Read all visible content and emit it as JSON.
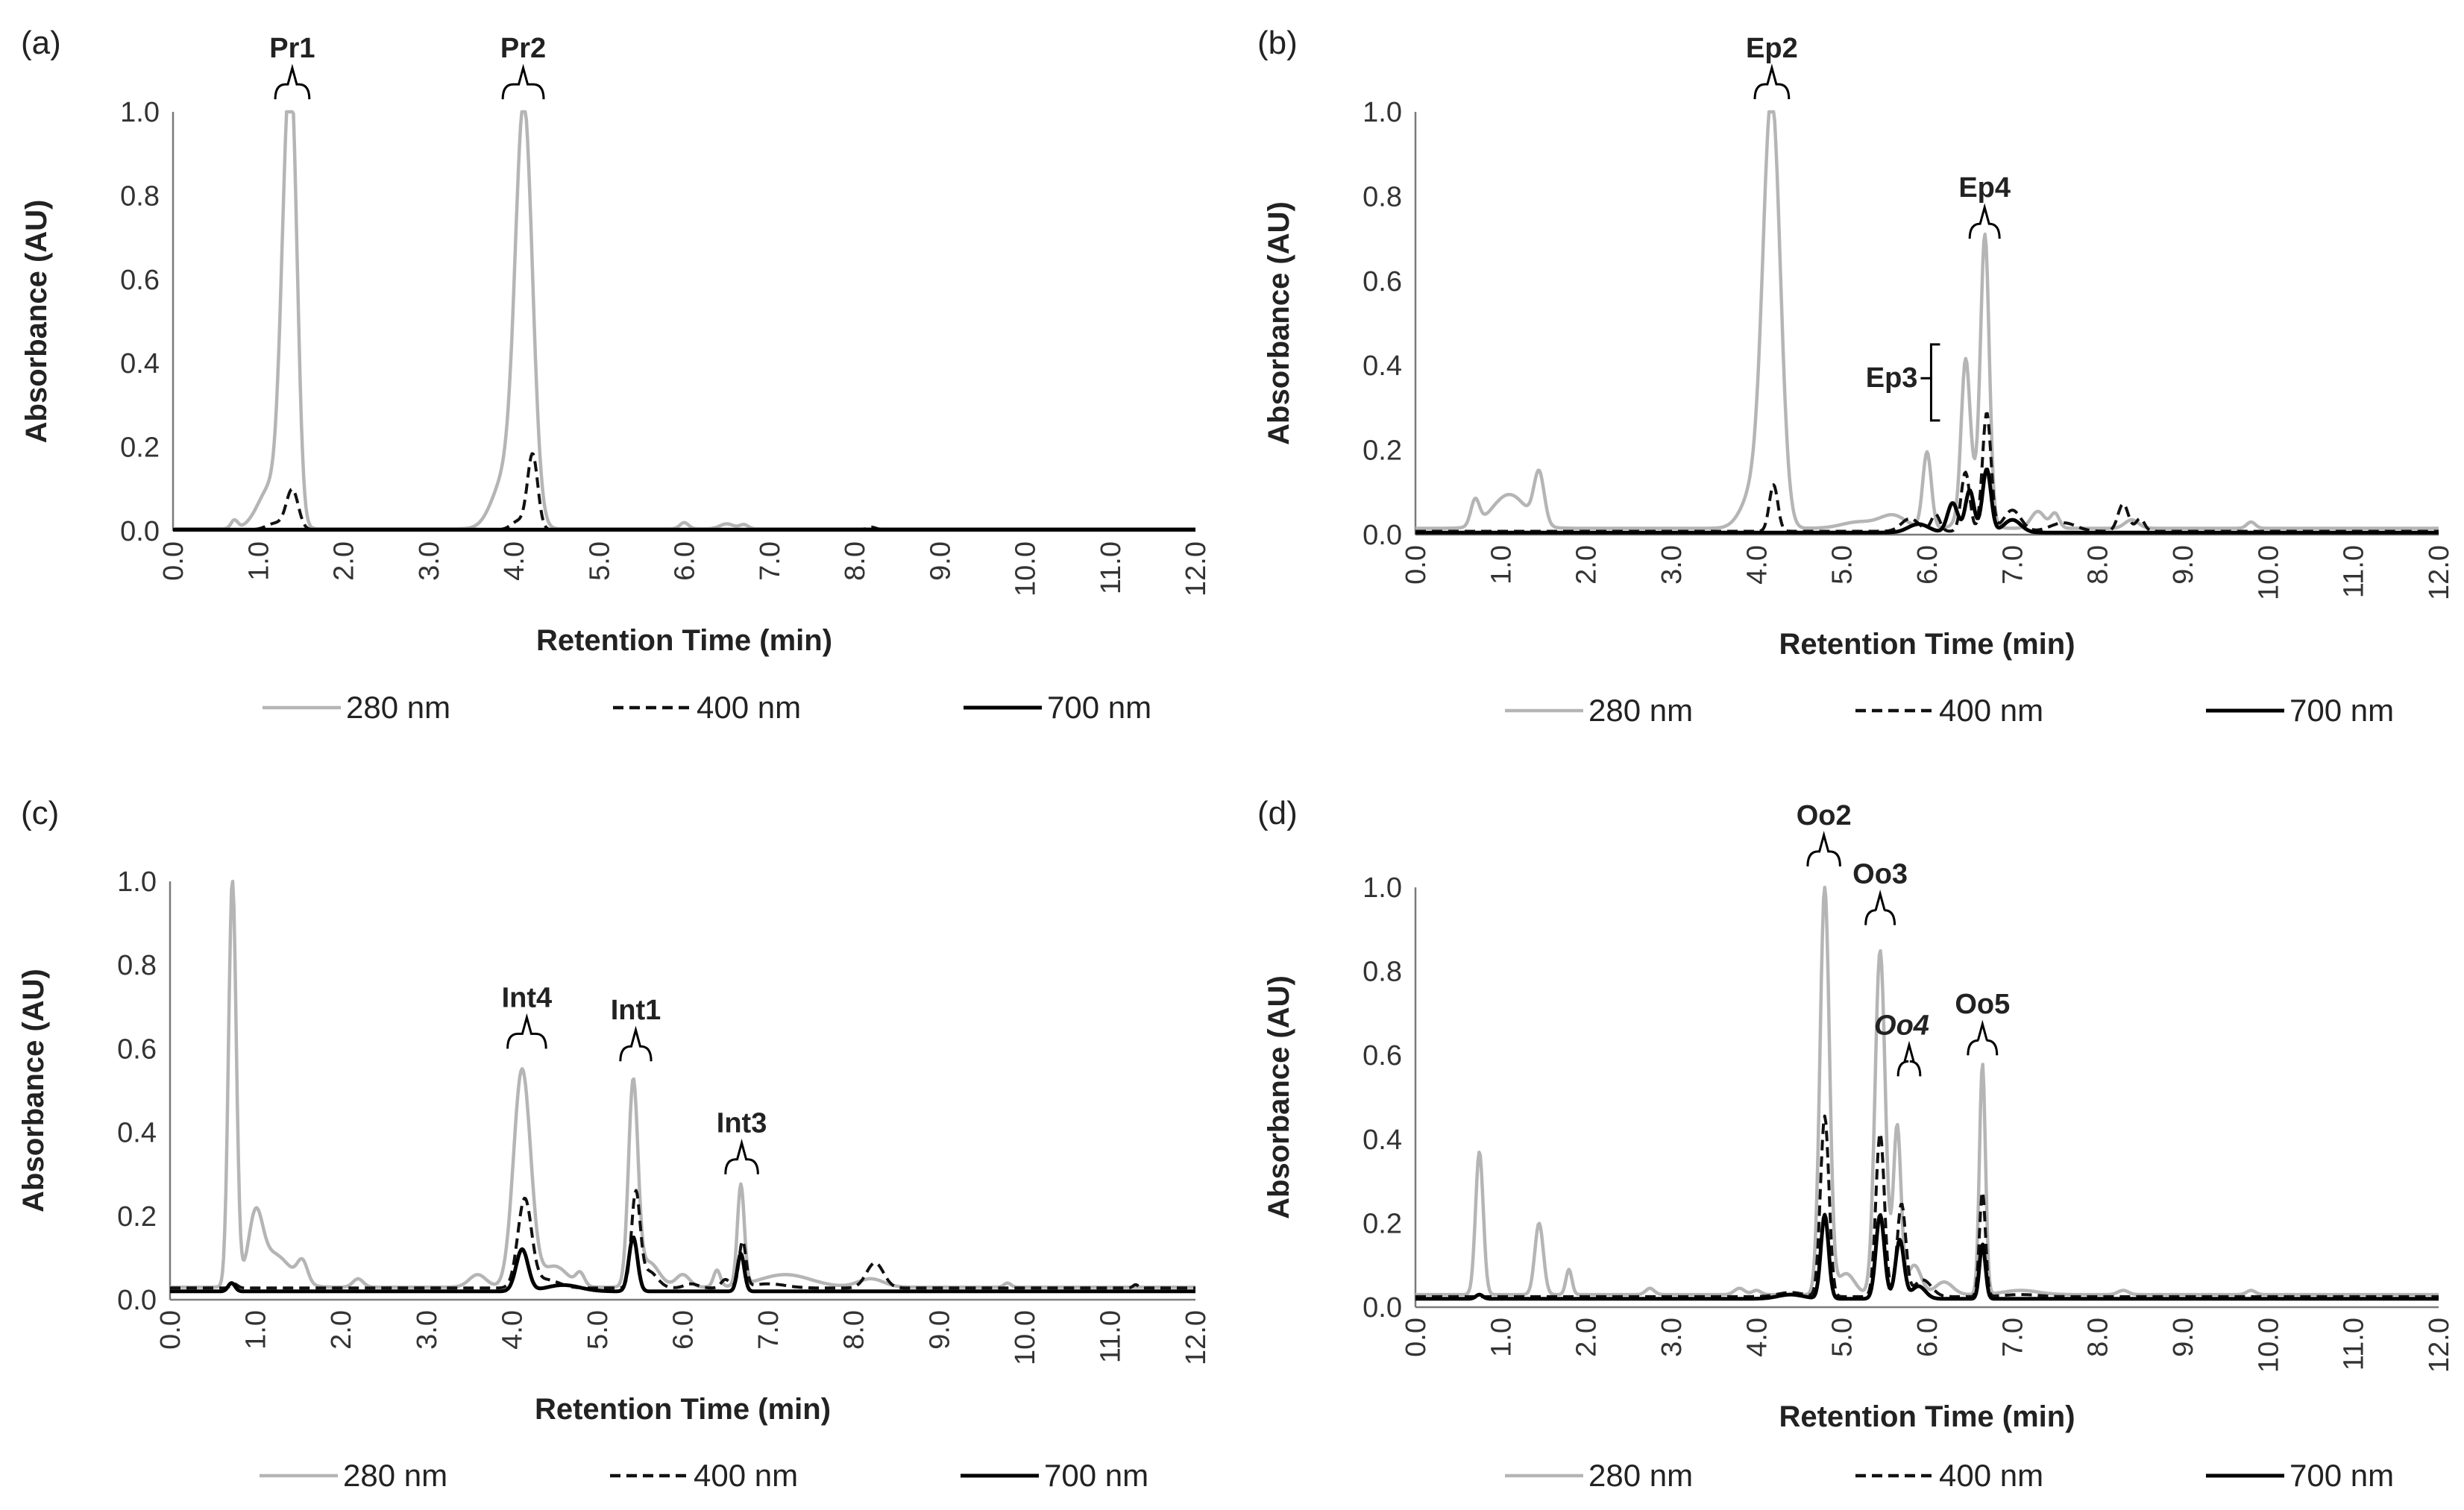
{
  "figure": {
    "colors": {
      "nm280": "#b5b5b5",
      "nm400": "#111111",
      "nm700": "#000000"
    },
    "legend": [
      {
        "key": "nm280",
        "label": "280 nm",
        "dash": ""
      },
      {
        "key": "nm400",
        "label": "400 nm",
        "dash": "14,8"
      },
      {
        "key": "nm700",
        "label": "700 nm",
        "dash": ""
      }
    ]
  },
  "chart_data": [
    {
      "id": "a",
      "panel_label": "(a)",
      "type": "line",
      "xlabel": "Retention Time (min)",
      "ylabel": "Absorbance (AU)",
      "xlim": [
        0,
        12
      ],
      "ylim": [
        0,
        1.0
      ],
      "xticks": [
        "0.0",
        "1.0",
        "2.0",
        "3.0",
        "4.0",
        "5.0",
        "6.0",
        "7.0",
        "8.0",
        "9.0",
        "10.0",
        "11.0",
        "12.0"
      ],
      "yticks": [
        "0.0",
        "0.2",
        "0.4",
        "0.6",
        "0.8",
        "1.0"
      ],
      "baseline": {
        "nm280": 0.005,
        "nm400": 0.003,
        "nm700": 0.003
      },
      "peaks": {
        "nm280": [
          [
            0.72,
            0.02,
            0.04
          ],
          [
            1.35,
            0.85,
            0.08
          ],
          [
            1.42,
            0.35,
            0.06
          ],
          [
            1.15,
            0.1,
            0.15
          ],
          [
            4.12,
            0.98,
            0.1
          ],
          [
            3.9,
            0.12,
            0.15
          ],
          [
            6.0,
            0.015,
            0.05
          ],
          [
            6.5,
            0.012,
            0.08
          ],
          [
            6.7,
            0.01,
            0.05
          ]
        ],
        "nm400": [
          [
            1.4,
            0.095,
            0.07
          ],
          [
            1.2,
            0.015,
            0.1
          ],
          [
            4.22,
            0.18,
            0.06
          ],
          [
            4.05,
            0.02,
            0.08
          ],
          [
            8.2,
            0.006,
            0.05
          ]
        ],
        "nm700": []
      },
      "annotations": [
        {
          "label": "Pr1",
          "x0": 1.2,
          "x1": 1.6,
          "y": 1.03
        },
        {
          "label": "Pr2",
          "x0": 3.87,
          "x1": 4.35,
          "y": 1.03
        }
      ]
    },
    {
      "id": "b",
      "panel_label": "(b)",
      "type": "line",
      "xlabel": "Retention Time (min)",
      "ylabel": "Absorbance (AU)",
      "xlim": [
        0,
        12
      ],
      "ylim": [
        0,
        1.0
      ],
      "xticks": [
        "0.0",
        "1.0",
        "2.0",
        "3.0",
        "4.0",
        "5.0",
        "6.0",
        "7.0",
        "8.0",
        "9.0",
        "10.0",
        "11.0",
        "12.0"
      ],
      "yticks": [
        "0.0",
        "0.2",
        "0.4",
        "0.6",
        "0.8",
        "1.0"
      ],
      "baseline": {
        "nm280": 0.015,
        "nm400": 0.008,
        "nm700": 0.005
      },
      "peaks": {
        "nm280": [
          [
            0.7,
            0.06,
            0.05
          ],
          [
            1.1,
            0.08,
            0.2
          ],
          [
            1.45,
            0.12,
            0.06
          ],
          [
            4.18,
            0.98,
            0.1
          ],
          [
            4.0,
            0.1,
            0.15
          ],
          [
            5.2,
            0.015,
            0.2
          ],
          [
            5.6,
            0.03,
            0.15
          ],
          [
            6.0,
            0.18,
            0.05
          ],
          [
            6.45,
            0.33,
            0.05
          ],
          [
            6.68,
            0.64,
            0.05
          ],
          [
            6.55,
            0.1,
            0.12
          ],
          [
            7.3,
            0.04,
            0.08
          ],
          [
            7.5,
            0.035,
            0.05
          ],
          [
            8.4,
            0.02,
            0.08
          ],
          [
            9.8,
            0.015,
            0.05
          ]
        ],
        "nm400": [
          [
            4.2,
            0.11,
            0.05
          ],
          [
            5.8,
            0.03,
            0.1
          ],
          [
            6.1,
            0.04,
            0.05
          ],
          [
            6.45,
            0.14,
            0.05
          ],
          [
            6.7,
            0.28,
            0.05
          ],
          [
            7.0,
            0.05,
            0.1
          ],
          [
            8.3,
            0.065,
            0.06
          ],
          [
            8.5,
            0.03,
            0.05
          ],
          [
            7.6,
            0.02,
            0.15
          ]
        ],
        "nm700": [
          [
            6.3,
            0.07,
            0.06
          ],
          [
            6.5,
            0.1,
            0.05
          ],
          [
            6.7,
            0.15,
            0.05
          ],
          [
            5.9,
            0.02,
            0.12
          ],
          [
            7.0,
            0.03,
            0.1
          ]
        ]
      },
      "annotations": [
        {
          "label": "Ep2",
          "x0": 3.98,
          "x1": 4.38,
          "y": 1.03
        },
        {
          "label": "Ep4",
          "x0": 6.5,
          "x1": 6.85,
          "y": 0.7
        },
        {
          "label": "Ep3",
          "x0": 6.1,
          "x1": 6.42,
          "y": 0.37,
          "orient": "vertical"
        }
      ]
    },
    {
      "id": "c",
      "panel_label": "(c)",
      "type": "line",
      "xlabel": "Retention Time (min)",
      "ylabel": "Absorbance (AU)",
      "xlim": [
        0,
        12
      ],
      "ylim": [
        0,
        1.0
      ],
      "xticks": [
        "0.0",
        "1.0",
        "2.0",
        "3.0",
        "4.0",
        "5.0",
        "6.0",
        "7.0",
        "8.0",
        "9.0",
        "10.0",
        "11.0",
        "12.0"
      ],
      "yticks": [
        "0.0",
        "0.2",
        "0.4",
        "0.6",
        "0.8",
        "1.0"
      ],
      "baseline": {
        "nm280": 0.03,
        "nm400": 0.028,
        "nm700": 0.02
      },
      "peaks": {
        "nm280": [
          [
            0.73,
            0.97,
            0.045
          ],
          [
            1.0,
            0.14,
            0.08
          ],
          [
            1.2,
            0.08,
            0.2
          ],
          [
            1.55,
            0.05,
            0.06
          ],
          [
            2.2,
            0.02,
            0.06
          ],
          [
            4.12,
            0.52,
            0.1
          ],
          [
            3.6,
            0.03,
            0.1
          ],
          [
            4.5,
            0.05,
            0.15
          ],
          [
            4.8,
            0.03,
            0.05
          ],
          [
            5.42,
            0.48,
            0.055
          ],
          [
            5.6,
            0.06,
            0.12
          ],
          [
            6.0,
            0.03,
            0.08
          ],
          [
            6.4,
            0.04,
            0.04
          ],
          [
            6.68,
            0.24,
            0.04
          ],
          [
            7.2,
            0.03,
            0.3
          ],
          [
            8.2,
            0.02,
            0.15
          ],
          [
            9.8,
            0.01,
            0.04
          ]
        ],
        "nm400": [
          [
            0.75,
            0.01,
            0.04
          ],
          [
            4.15,
            0.21,
            0.08
          ],
          [
            4.4,
            0.02,
            0.15
          ],
          [
            5.45,
            0.22,
            0.05
          ],
          [
            5.6,
            0.04,
            0.1
          ],
          [
            6.1,
            0.01,
            0.08
          ],
          [
            6.5,
            0.02,
            0.05
          ],
          [
            6.7,
            0.11,
            0.04
          ],
          [
            7.0,
            0.01,
            0.2
          ],
          [
            8.25,
            0.06,
            0.1
          ],
          [
            11.3,
            0.008,
            0.03
          ]
        ],
        "nm700": [
          [
            0.72,
            0.02,
            0.04
          ],
          [
            4.12,
            0.1,
            0.07
          ],
          [
            5.42,
            0.13,
            0.05
          ],
          [
            6.68,
            0.09,
            0.04
          ],
          [
            4.6,
            0.015,
            0.2
          ]
        ]
      },
      "annotations": [
        {
          "label": "Int4",
          "x0": 3.95,
          "x1": 4.4,
          "y": 0.6
        },
        {
          "label": "Int1",
          "x0": 5.27,
          "x1": 5.63,
          "y": 0.57
        },
        {
          "label": "Int3",
          "x0": 6.5,
          "x1": 6.88,
          "y": 0.3
        }
      ]
    },
    {
      "id": "d",
      "panel_label": "(d)",
      "type": "line",
      "xlabel": "Retention Time (min)",
      "ylabel": "Absorbance (AU)",
      "xlim": [
        0,
        12
      ],
      "ylim": [
        0,
        1.0
      ],
      "xticks": [
        "0.0",
        "1.0",
        "2.0",
        "3.0",
        "4.0",
        "5.0",
        "6.0",
        "7.0",
        "8.0",
        "9.0",
        "10.0",
        "11.0",
        "12.0"
      ],
      "yticks": [
        "0.0",
        "0.2",
        "0.4",
        "0.6",
        "0.8",
        "1.0"
      ],
      "baseline": {
        "nm280": 0.03,
        "nm400": 0.025,
        "nm700": 0.02
      },
      "peaks": {
        "nm280": [
          [
            0.75,
            0.34,
            0.045
          ],
          [
            1.45,
            0.17,
            0.05
          ],
          [
            1.8,
            0.06,
            0.035
          ],
          [
            2.75,
            0.015,
            0.05
          ],
          [
            3.8,
            0.015,
            0.06
          ],
          [
            4.0,
            0.01,
            0.05
          ],
          [
            4.8,
            0.97,
            0.055
          ],
          [
            5.05,
            0.05,
            0.1
          ],
          [
            5.45,
            0.82,
            0.06
          ],
          [
            5.65,
            0.4,
            0.045
          ],
          [
            5.85,
            0.07,
            0.08
          ],
          [
            6.2,
            0.03,
            0.1
          ],
          [
            6.65,
            0.55,
            0.035
          ],
          [
            7.1,
            0.01,
            0.2
          ],
          [
            8.3,
            0.01,
            0.06
          ],
          [
            9.8,
            0.01,
            0.05
          ]
        ],
        "nm400": [
          [
            4.8,
            0.43,
            0.05
          ],
          [
            5.45,
            0.39,
            0.05
          ],
          [
            5.7,
            0.22,
            0.05
          ],
          [
            5.95,
            0.04,
            0.1
          ],
          [
            6.65,
            0.25,
            0.035
          ],
          [
            4.4,
            0.01,
            0.15
          ],
          [
            7.1,
            0.005,
            0.2
          ]
        ],
        "nm700": [
          [
            0.75,
            0.01,
            0.04
          ],
          [
            4.8,
            0.2,
            0.045
          ],
          [
            5.45,
            0.2,
            0.05
          ],
          [
            5.68,
            0.14,
            0.05
          ],
          [
            5.9,
            0.03,
            0.08
          ],
          [
            6.65,
            0.13,
            0.035
          ],
          [
            4.4,
            0.01,
            0.15
          ]
        ]
      },
      "annotations": [
        {
          "label": "Oo2",
          "x0": 4.6,
          "x1": 4.98,
          "y": 1.05
        },
        {
          "label": "Oo3",
          "x0": 5.28,
          "x1": 5.62,
          "y": 0.91
        },
        {
          "label": "Oo4",
          "x0": 5.66,
          "x1": 5.92,
          "y": 0.55,
          "orient": "small"
        },
        {
          "label": "Oo5",
          "x0": 6.48,
          "x1": 6.82,
          "y": 0.6
        }
      ]
    }
  ]
}
